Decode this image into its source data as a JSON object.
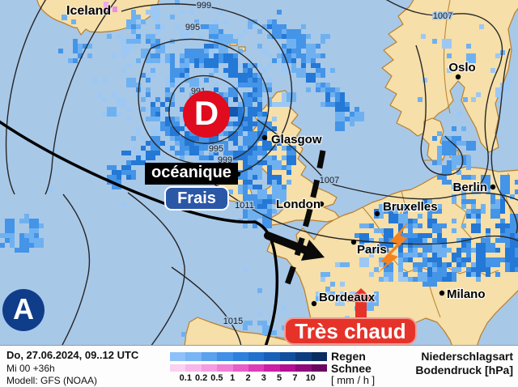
{
  "map": {
    "country_label": "Iceland",
    "low_symbol": "D",
    "high_symbol": "A",
    "annotations": {
      "air_mass": "océanique",
      "temp_feel": "Frais",
      "heat": "Très chaud"
    },
    "cities": [
      {
        "name": "Glasgow"
      },
      {
        "name": "Oslo"
      },
      {
        "name": "Berlin"
      },
      {
        "name": "London"
      },
      {
        "name": "Bruxelles"
      },
      {
        "name": "Paris"
      },
      {
        "name": "Bordeaux"
      },
      {
        "name": "Milano"
      }
    ],
    "isobars": [
      {
        "value": "999"
      },
      {
        "value": "995"
      },
      {
        "value": "991"
      },
      {
        "value": "995"
      },
      {
        "value": "999"
      },
      {
        "value": "1007"
      },
      {
        "value": "1007"
      },
      {
        "value": "1011"
      },
      {
        "value": "1015"
      }
    ]
  },
  "legend": {
    "date_line": "Do, 27.06.2024, 09..12 UTC",
    "run_line": "Mi 00 +36h",
    "model_line": "Modell: GFS (NOAA)",
    "rain_label": "Regen",
    "snow_label": "Schnee",
    "unit_label": "[ mm / h ]",
    "type_label": "Niederschlagsart",
    "pressure_label": "Bodendruck [hPa]",
    "ticks": [
      "0.1",
      "0.2",
      "0.5",
      "1",
      "2",
      "3",
      "5",
      "7",
      "10"
    ],
    "rain_colors": [
      "#8ec1f8",
      "#79b4f4",
      "#5aa1ee",
      "#418fe6",
      "#2f80dc",
      "#2371cc",
      "#1a60b8",
      "#124e9e",
      "#0e3d7f",
      "#0a2d60"
    ],
    "snow_colors": [
      "#fbd0f0",
      "#f9b6ea",
      "#f69ce2",
      "#f07fd6",
      "#e75ec8",
      "#dc3cb8",
      "#cc1fa6",
      "#b40e92",
      "#8f0a7a",
      "#6a0660"
    ]
  },
  "colors": {
    "sea": "#a8c8e8",
    "land": "#f6dfa8",
    "coast": "#b87f2c",
    "low_red": "#e00b1d",
    "high_navy": "#0f3d8a",
    "frais_blue": "#2b57a7",
    "heat_red": "#e6332a",
    "lightning_orange": "#f5821f"
  }
}
